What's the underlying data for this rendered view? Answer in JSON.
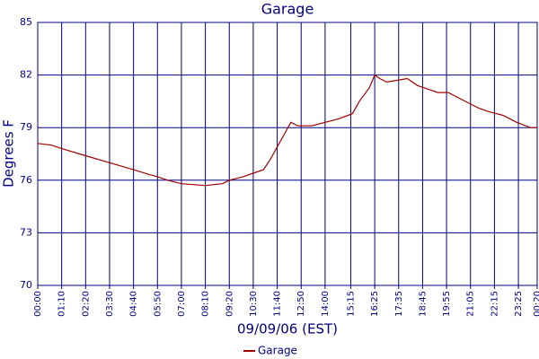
{
  "chart_data": {
    "type": "line",
    "title": "Garage",
    "x_label": "09/09/06 (EST)",
    "y_label": "Degrees F",
    "x": [
      0,
      40,
      70,
      140,
      210,
      280,
      330,
      350,
      380,
      420,
      490,
      540,
      560,
      600,
      630,
      660,
      680,
      700,
      720,
      740,
      760,
      800,
      840,
      880,
      920,
      940,
      970,
      985,
      1000,
      1020,
      1050,
      1080,
      1110,
      1140,
      1170,
      1200,
      1230,
      1260,
      1290,
      1320,
      1360,
      1400,
      1440,
      1460
    ],
    "series": [
      {
        "name": "Garage",
        "color": "#a00000",
        "values": [
          78.1,
          78.0,
          77.8,
          77.4,
          77.0,
          76.6,
          76.3,
          76.2,
          76.0,
          75.8,
          75.7,
          75.8,
          76.0,
          76.2,
          76.4,
          76.6,
          77.2,
          77.9,
          78.6,
          79.3,
          79.1,
          79.1,
          79.3,
          79.5,
          79.8,
          80.5,
          81.3,
          82.0,
          81.8,
          81.6,
          81.7,
          81.8,
          81.4,
          81.2,
          81.0,
          81.0,
          80.7,
          80.4,
          80.1,
          79.9,
          79.7,
          79.3,
          79.0,
          79.0
        ]
      }
    ],
    "xlim": [
      0,
      1460
    ],
    "xticks": [
      {
        "value": 0,
        "label": "00:00"
      },
      {
        "value": 70,
        "label": "01:10"
      },
      {
        "value": 140,
        "label": "02:20"
      },
      {
        "value": 210,
        "label": "03:30"
      },
      {
        "value": 280,
        "label": "04:40"
      },
      {
        "value": 350,
        "label": "05:50"
      },
      {
        "value": 420,
        "label": "07:00"
      },
      {
        "value": 490,
        "label": "08:10"
      },
      {
        "value": 560,
        "label": "09:20"
      },
      {
        "value": 630,
        "label": "10:30"
      },
      {
        "value": 700,
        "label": "11:40"
      },
      {
        "value": 770,
        "label": "12:50"
      },
      {
        "value": 840,
        "label": "14:00"
      },
      {
        "value": 915,
        "label": "15:15"
      },
      {
        "value": 985,
        "label": "16:25"
      },
      {
        "value": 1055,
        "label": "17:35"
      },
      {
        "value": 1125,
        "label": "18:45"
      },
      {
        "value": 1195,
        "label": "19:55"
      },
      {
        "value": 1265,
        "label": "21:05"
      },
      {
        "value": 1335,
        "label": "22:15"
      },
      {
        "value": 1405,
        "label": "23:25"
      },
      {
        "value": 1460,
        "label": "00:20"
      }
    ],
    "ylim": [
      70,
      85
    ],
    "yticks": [
      70,
      73,
      76,
      79,
      82,
      85
    ],
    "grid": true,
    "legend": "bottom"
  }
}
